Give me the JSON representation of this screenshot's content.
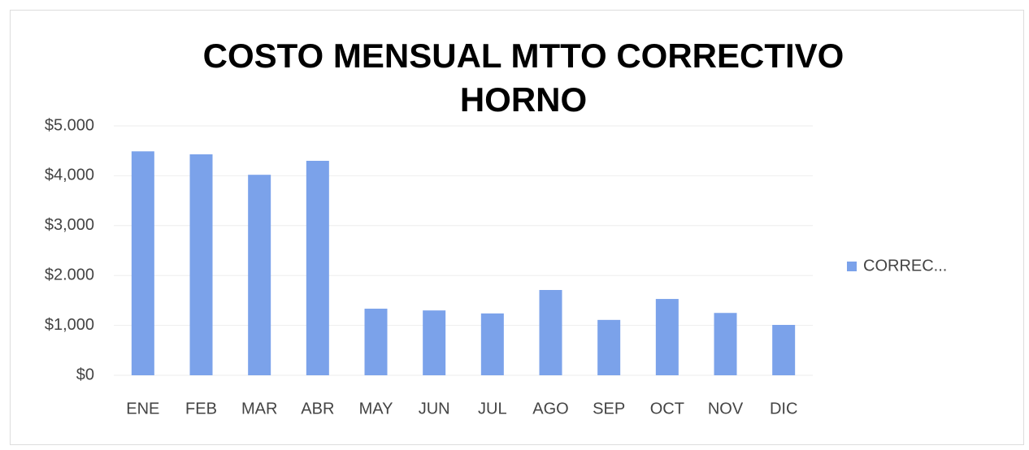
{
  "chart_data": {
    "type": "bar",
    "title": "COSTO MENSUAL MTTO CORRECTIVO HORNO",
    "categories": [
      "ENE",
      "FEB",
      "MAR",
      "ABR",
      "MAY",
      "JUN",
      "JUL",
      "AGO",
      "SEP",
      "OCT",
      "NOV",
      "DIC"
    ],
    "series": [
      {
        "name": "CORREC...",
        "color": "#7ba2ea",
        "values": [
          4490,
          4430,
          4020,
          4300,
          1335,
          1300,
          1240,
          1710,
          1110,
          1530,
          1250,
          1010
        ]
      }
    ],
    "ylim": [
      0,
      5000
    ],
    "yticks": [
      {
        "value": 0,
        "label": "$0"
      },
      {
        "value": 1000,
        "label": "$1,000"
      },
      {
        "value": 2000,
        "label": "$2.000"
      },
      {
        "value": 3000,
        "label": "$3,000"
      },
      {
        "value": 4000,
        "label": "$4,000"
      },
      {
        "value": 5000,
        "label": "$5.000"
      }
    ],
    "grid": true,
    "legend": "right"
  }
}
